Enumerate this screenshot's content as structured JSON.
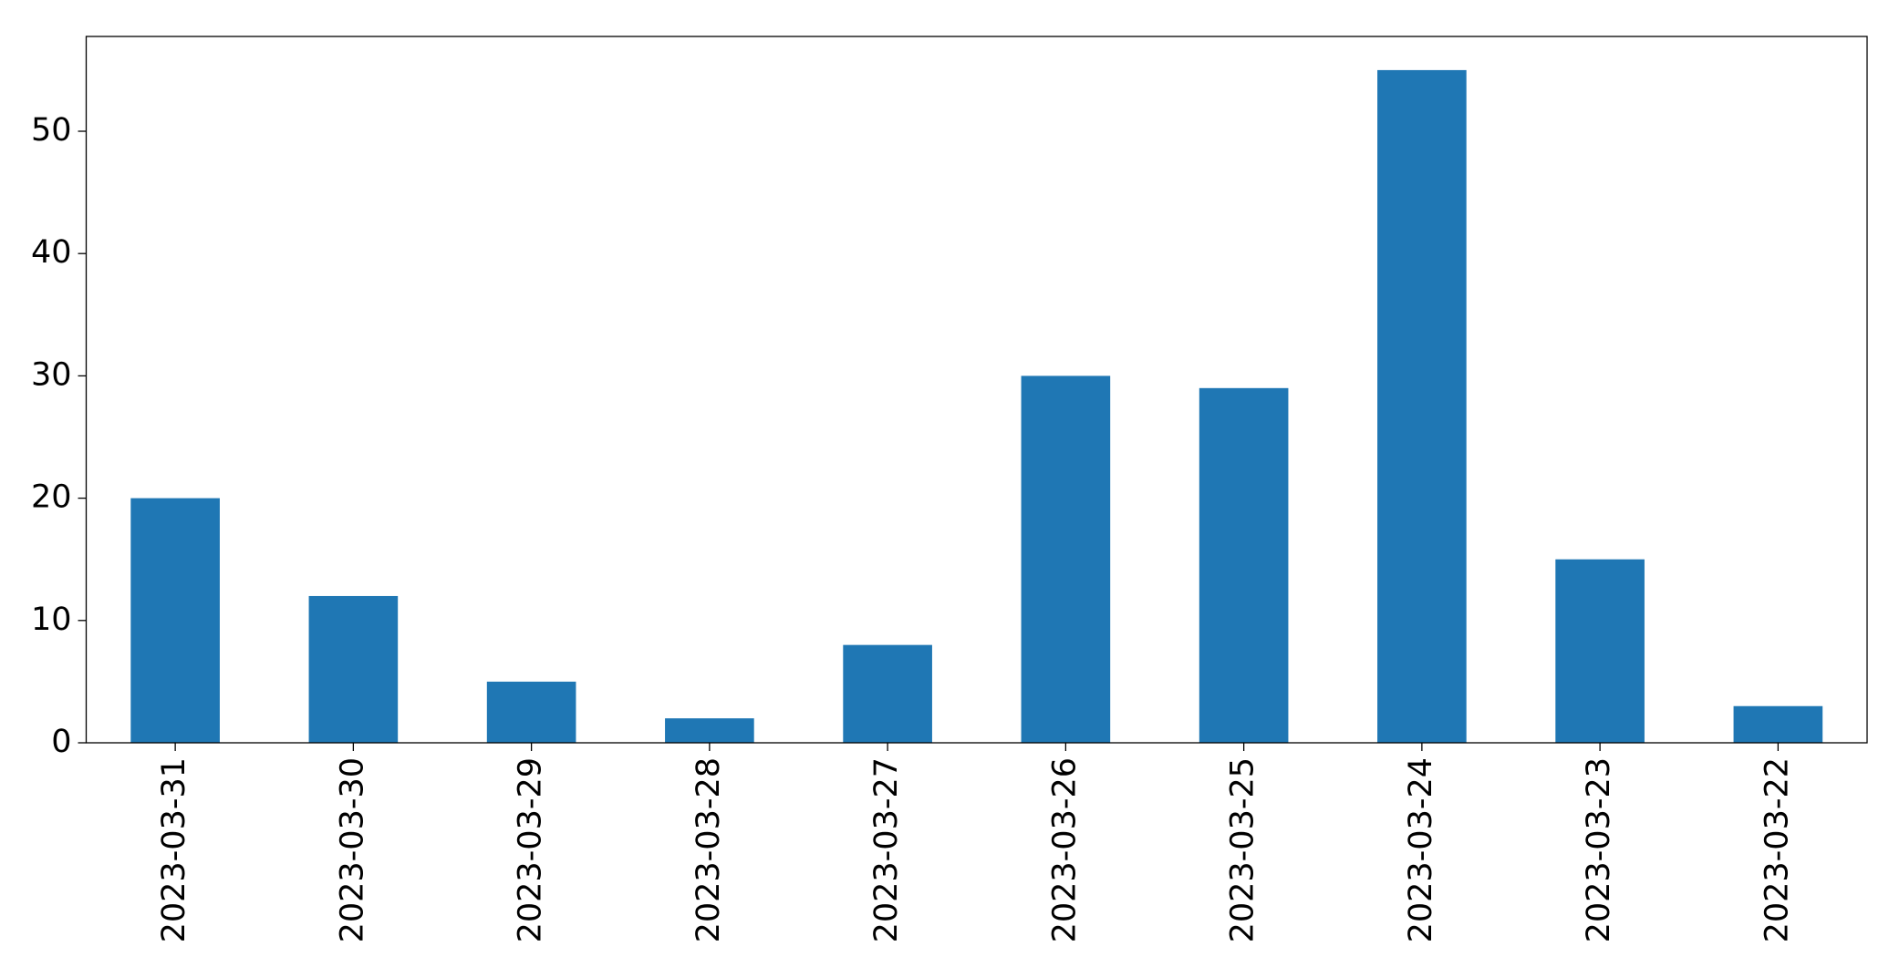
{
  "chart_data": {
    "type": "bar",
    "categories": [
      "2023-03-31",
      "2023-03-30",
      "2023-03-29",
      "2023-03-28",
      "2023-03-27",
      "2023-03-26",
      "2023-03-25",
      "2023-03-24",
      "2023-03-23",
      "2023-03-22"
    ],
    "values": [
      20,
      12,
      5,
      2,
      8,
      30,
      29,
      55,
      15,
      3
    ],
    "color": "#1f77b4",
    "ylim": [
      0,
      57.75
    ],
    "yticks": [
      0,
      10,
      20,
      30,
      40,
      50
    ],
    "grid": false
  }
}
